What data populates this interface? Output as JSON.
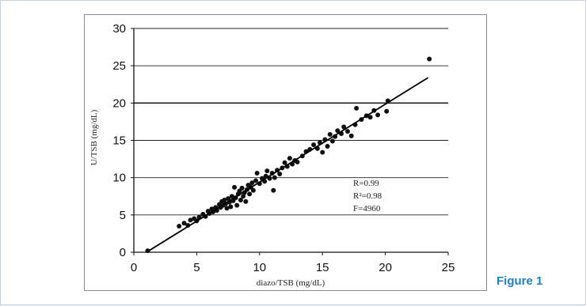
{
  "figure": {
    "caption": "Figure 1"
  },
  "chart_data": {
    "type": "scatter",
    "xlabel": "diazo/TSB (mg/dL)",
    "ylabel": "U/TSB (mg/dL)",
    "xlim": [
      0,
      25
    ],
    "ylim": [
      0,
      30
    ],
    "xticks": [
      "0",
      "5",
      "10",
      "15",
      "20",
      "25"
    ],
    "yticks": [
      "0",
      "5",
      "10",
      "15",
      "20",
      "25",
      "30"
    ],
    "grid": "horizontal",
    "annotations": [
      "R=0.99",
      "R²=0.98",
      "F=4960"
    ],
    "fit_line": {
      "from": [
        1.1,
        0.1
      ],
      "to": [
        23.4,
        23.4
      ]
    },
    "points": [
      [
        1.1,
        0.2
      ],
      [
        3.6,
        3.5
      ],
      [
        4.0,
        3.9
      ],
      [
        4.3,
        3.6
      ],
      [
        4.5,
        4.3
      ],
      [
        4.8,
        4.5
      ],
      [
        5.0,
        4.2
      ],
      [
        5.2,
        4.7
      ],
      [
        5.5,
        5.1
      ],
      [
        5.7,
        4.8
      ],
      [
        5.9,
        5.5
      ],
      [
        6.0,
        5.2
      ],
      [
        6.2,
        5.8
      ],
      [
        6.3,
        5.4
      ],
      [
        6.5,
        6.0
      ],
      [
        6.6,
        5.6
      ],
      [
        6.8,
        6.4
      ],
      [
        6.9,
        6.0
      ],
      [
        7.0,
        6.8
      ],
      [
        7.1,
        6.3
      ],
      [
        7.2,
        7.0
      ],
      [
        7.3,
        6.5
      ],
      [
        7.4,
        5.9
      ],
      [
        7.5,
        7.2
      ],
      [
        7.6,
        6.7
      ],
      [
        7.7,
        6.1
      ],
      [
        7.8,
        7.5
      ],
      [
        7.9,
        6.9
      ],
      [
        8.0,
        8.7
      ],
      [
        8.1,
        7.3
      ],
      [
        8.2,
        6.3
      ],
      [
        8.3,
        7.8
      ],
      [
        8.4,
        8.2
      ],
      [
        8.5,
        7.0
      ],
      [
        8.6,
        8.6
      ],
      [
        8.7,
        7.5
      ],
      [
        8.8,
        8.0
      ],
      [
        8.9,
        6.8
      ],
      [
        9.0,
        8.4
      ],
      [
        9.1,
        9.0
      ],
      [
        9.2,
        7.8
      ],
      [
        9.3,
        8.7
      ],
      [
        9.4,
        9.3
      ],
      [
        9.5,
        8.3
      ],
      [
        9.7,
        9.6
      ],
      [
        9.8,
        10.6
      ],
      [
        10.0,
        9.2
      ],
      [
        10.2,
        9.9
      ],
      [
        10.4,
        9.5
      ],
      [
        10.5,
        10.2
      ],
      [
        10.6,
        10.9
      ],
      [
        10.8,
        9.9
      ],
      [
        11.0,
        10.6
      ],
      [
        11.1,
        8.3
      ],
      [
        11.2,
        10.0
      ],
      [
        11.4,
        11.0
      ],
      [
        11.6,
        10.5
      ],
      [
        11.8,
        11.3
      ],
      [
        12.0,
        12.0
      ],
      [
        12.2,
        11.5
      ],
      [
        12.4,
        12.6
      ],
      [
        12.6,
        11.8
      ],
      [
        12.8,
        12.3
      ],
      [
        13.0,
        12.1
      ],
      [
        13.4,
        12.9
      ],
      [
        13.7,
        13.5
      ],
      [
        14.0,
        13.8
      ],
      [
        14.3,
        14.4
      ],
      [
        14.6,
        13.9
      ],
      [
        14.8,
        14.7
      ],
      [
        15.0,
        13.4
      ],
      [
        15.2,
        15.1
      ],
      [
        15.4,
        14.2
      ],
      [
        15.6,
        15.8
      ],
      [
        15.8,
        14.9
      ],
      [
        16.0,
        15.5
      ],
      [
        16.2,
        16.3
      ],
      [
        16.5,
        15.9
      ],
      [
        16.7,
        16.8
      ],
      [
        17.0,
        16.2
      ],
      [
        17.3,
        15.6
      ],
      [
        17.6,
        17.1
      ],
      [
        17.7,
        19.3
      ],
      [
        18.1,
        17.8
      ],
      [
        18.5,
        18.3
      ],
      [
        18.8,
        18.1
      ],
      [
        19.1,
        19.0
      ],
      [
        19.4,
        18.4
      ],
      [
        20.1,
        18.9
      ],
      [
        20.2,
        20.3
      ],
      [
        23.5,
        25.9
      ]
    ]
  }
}
